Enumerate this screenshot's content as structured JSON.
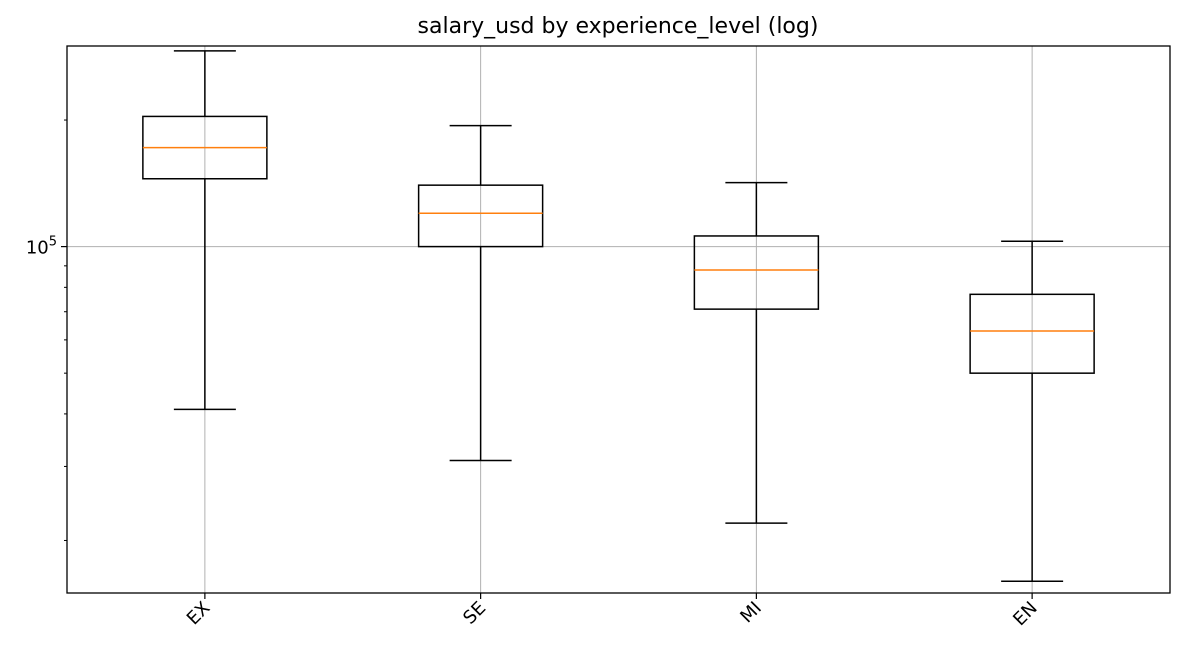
{
  "chart_data": {
    "type": "box",
    "title": "salary_usd by experience_level (log)",
    "xlabel": "",
    "ylabel": "",
    "y_scale": "log",
    "ylim": [
      15000,
      300000
    ],
    "grid": true,
    "categories": [
      "EX",
      "SE",
      "MI",
      "EN"
    ],
    "y_tick_labels": [
      {
        "value": 100000,
        "base": "10",
        "exponent": "5"
      }
    ],
    "boxes": [
      {
        "category": "EX",
        "whisker_low": 41000,
        "q1": 145000,
        "median": 172000,
        "q3": 204000,
        "whisker_high": 292000
      },
      {
        "category": "SE",
        "whisker_low": 31000,
        "q1": 100000,
        "median": 120000,
        "q3": 140000,
        "whisker_high": 194000
      },
      {
        "category": "MI",
        "whisker_low": 22000,
        "q1": 71000,
        "median": 88000,
        "q3": 106000,
        "whisker_high": 142000
      },
      {
        "category": "EN",
        "whisker_low": 16000,
        "q1": 50000,
        "median": 63000,
        "q3": 77000,
        "whisker_high": 103000
      }
    ],
    "colors": {
      "box": "#000000",
      "median": "#ff7f0e",
      "grid": "#b0b0b0"
    }
  }
}
